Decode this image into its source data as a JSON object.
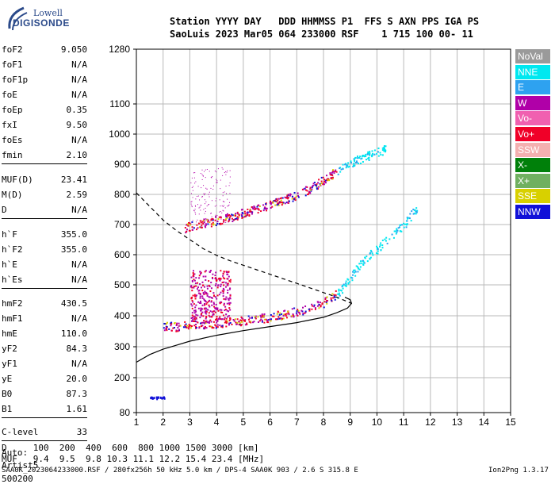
{
  "logo": {
    "line1": "Lowell",
    "line2": "DIGISONDE"
  },
  "header": {
    "row1": "Station YYYY DAY   DDD HHMMSS P1  FFS S AXN PPS IGA PS",
    "row2": "SaoLuis 2023 Mar05 064 233000 RSF    1 715 100 00- 11"
  },
  "params": [
    {
      "key": "foF2",
      "value": "9.050"
    },
    {
      "key": "foF1",
      "value": "N/A"
    },
    {
      "key": "foF1p",
      "value": "N/A"
    },
    {
      "key": "foE",
      "value": "N/A"
    },
    {
      "key": "foEp",
      "value": "0.35"
    },
    {
      "key": "fxI",
      "value": "9.50"
    },
    {
      "key": "foEs",
      "value": "N/A"
    },
    {
      "key": "fmin",
      "value": "2.10"
    },
    {
      "key": "MUF(D)",
      "value": "23.41"
    },
    {
      "key": "M(D)",
      "value": "2.59"
    },
    {
      "key": "D",
      "value": "N/A"
    },
    {
      "key": "h`F",
      "value": "355.0"
    },
    {
      "key": "h`F2",
      "value": "355.0"
    },
    {
      "key": "h`E",
      "value": "N/A"
    },
    {
      "key": "h`Es",
      "value": "N/A"
    },
    {
      "key": "hmF2",
      "value": "430.5"
    },
    {
      "key": "hmF1",
      "value": "N/A"
    },
    {
      "key": "hmE",
      "value": "110.0"
    },
    {
      "key": "yF2",
      "value": "84.3"
    },
    {
      "key": "yF1",
      "value": "N/A"
    },
    {
      "key": "yE",
      "value": "20.0"
    },
    {
      "key": "B0",
      "value": "87.3"
    },
    {
      "key": "B1",
      "value": "1.61"
    },
    {
      "key": "C-level",
      "value": "33"
    }
  ],
  "auto": {
    "line1": "Auto:",
    "line2": "Artist5",
    "line3": "500200"
  },
  "legend": [
    {
      "label": "NoVal",
      "color": "#9a9a9a"
    },
    {
      "label": "NNE",
      "color": "#00e8f0"
    },
    {
      "label": "E",
      "color": "#2ea2f0"
    },
    {
      "label": "W",
      "color": "#b000a8"
    },
    {
      "label": "Vo-",
      "color": "#f060b0"
    },
    {
      "label": "Vo+",
      "color": "#f00028"
    },
    {
      "label": "SSW",
      "color": "#f4b0b0"
    },
    {
      "label": "X-",
      "color": "#00800a"
    },
    {
      "label": "X+",
      "color": "#70b060"
    },
    {
      "label": "SSE",
      "color": "#d8d000"
    },
    {
      "label": "NNW",
      "color": "#1010d8"
    }
  ],
  "muf_table": {
    "row1": "D     100  200  400  600  800 1000 1500 3000 [km]",
    "row2": "MUF   9.4  9.5  9.8 10.3 11.1 12.2 15.4 23.4 [MHz]"
  },
  "credit_left": "SAA0K_2023064233000.RSF / 280fx256h 50 kHz 5.0 km / DPS-4 SAA0K 903 / 2.6 S 315.8 E",
  "credit_right": "Ion2Png 1.3.17",
  "chart_data": {
    "type": "scatter",
    "title": "",
    "xlabel": "",
    "ylabel": "",
    "xlim": [
      1,
      15
    ],
    "ylim": [
      80,
      1280
    ],
    "xticks": [
      1,
      2,
      3,
      4,
      5,
      6,
      7,
      8,
      9,
      10,
      11,
      12,
      13,
      14,
      15
    ],
    "yticks": [
      80,
      200,
      300,
      400,
      500,
      600,
      700,
      800,
      900,
      1000,
      1100,
      1280
    ],
    "grid": true,
    "series": [
      {
        "name": "O-trace F2",
        "kind": "trace",
        "x": [
          2.0,
          2.5,
          3.0,
          3.5,
          4.0,
          4.5,
          5.0,
          5.5,
          6.0,
          6.5,
          7.0,
          7.5,
          8.0,
          8.3,
          8.6,
          8.8,
          9.0,
          9.1,
          9.3,
          9.6,
          10.0,
          10.5,
          11.0,
          11.5
        ],
        "y": [
          370,
          366,
          370,
          375,
          378,
          382,
          387,
          392,
          398,
          405,
          415,
          428,
          445,
          460,
          480,
          500,
          520,
          540,
          560,
          590,
          620,
          660,
          700,
          760
        ]
      },
      {
        "name": "X-trace F2",
        "kind": "trace",
        "x": [
          2.8,
          3.0,
          3.5,
          4.0,
          4.5,
          5.0,
          5.5,
          6.0,
          6.5,
          7.0,
          7.5,
          8.0,
          8.5,
          9.0,
          9.5,
          10.0,
          10.3
        ],
        "y": [
          690,
          695,
          705,
          715,
          725,
          740,
          755,
          768,
          782,
          800,
          820,
          850,
          880,
          905,
          925,
          940,
          950
        ]
      },
      {
        "name": "Profile",
        "kind": "line",
        "x": [
          1.0,
          1.5,
          2.0,
          2.5,
          3.0,
          4.0,
          5.0,
          6.0,
          7.0,
          8.0,
          8.5,
          8.9,
          9.05,
          9.0,
          8.8
        ],
        "y": [
          250,
          275,
          292,
          305,
          318,
          337,
          352,
          365,
          378,
          395,
          410,
          425,
          440,
          452,
          460
        ]
      },
      {
        "name": "Dashed",
        "kind": "dashed",
        "x": [
          1.0,
          1.5,
          2.0,
          2.5,
          3.0,
          3.5,
          4.0,
          4.5,
          5.0,
          5.5,
          6.0,
          6.5,
          7.0,
          7.5,
          8.0,
          8.5,
          9.05
        ],
        "y": [
          805,
          760,
          715,
          680,
          650,
          620,
          598,
          580,
          565,
          550,
          535,
          520,
          505,
          490,
          475,
          460,
          440
        ]
      }
    ]
  }
}
